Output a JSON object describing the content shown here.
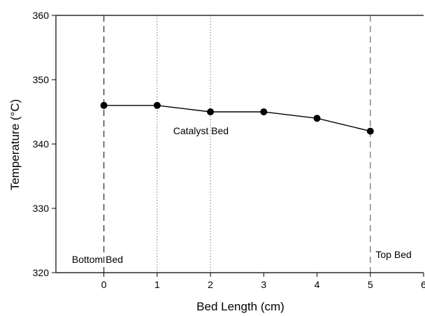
{
  "chart_data": {
    "type": "line",
    "xlabel": "Bed Length (cm)",
    "ylabel": "Temperature (°C)",
    "xlim": [
      -0.9,
      6
    ],
    "ylim": [
      320,
      360
    ],
    "x_ticks": [
      0,
      1,
      2,
      3,
      4,
      5,
      6
    ],
    "y_ticks": [
      320,
      330,
      340,
      350,
      360
    ],
    "x_tick_labels": [
      "0",
      "1",
      "2",
      "3",
      "4",
      "5",
      "6"
    ],
    "y_tick_labels": [
      "320",
      "330",
      "340",
      "350",
      "360"
    ],
    "grid": false,
    "legend": "none",
    "series": [
      {
        "x": [
          0,
          1,
          2,
          3,
          4,
          5
        ],
        "values": [
          346,
          346,
          345,
          345,
          344,
          342
        ]
      }
    ],
    "reference_lines": [
      {
        "x": 0,
        "style": "dashed",
        "color": "#333333"
      },
      {
        "x": 1,
        "style": "dotted",
        "color": "#777777"
      },
      {
        "x": 2,
        "style": "dotted",
        "color": "#777777"
      },
      {
        "x": 5,
        "style": "dashed",
        "color": "#777777"
      }
    ],
    "annotations": [
      {
        "text": "Bottom Bed",
        "x": -0.6,
        "y": 321.5
      },
      {
        "text": "Catalyst Bed",
        "x": 1.3,
        "y": 341.5
      },
      {
        "text": "Top Bed",
        "x": 5.1,
        "y": 322.3
      }
    ],
    "colors": {
      "line": "#000000",
      "marker": "#000000",
      "axis": "#000000"
    }
  }
}
